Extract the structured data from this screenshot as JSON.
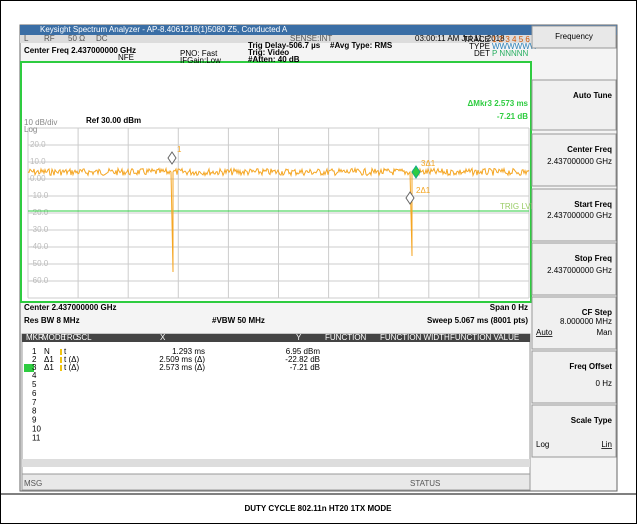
{
  "window_title": "Keysight Spectrum Analyzer - AP-8.4061218(1)5080 Z5, Conducted A",
  "toolbar": [
    "L",
    "RF",
    "50 Ω",
    "DC",
    "SENSE:INT"
  ],
  "datetime": "03:00:11 AM Jul 11, 2018",
  "header": {
    "center_freq": "Center Freq 2.437000000 GHz",
    "nfe": "NFE",
    "pno": "PNO: Fast",
    "ifgain": "IFGain:Low",
    "trig_delay": "Trig Delay-506.7 µs",
    "trig": "Trig: Video",
    "atten": "#Atten: 40 dB",
    "avg": "#Avg Type: RMS",
    "trace_label": "TRACE",
    "trace_value": "1 2 3 4 5 6",
    "type_label": "TYPE",
    "type_value": "WWWWWW",
    "det_label": "DET",
    "det_value": "P NNNNN"
  },
  "readout": {
    "line1": "ΔMkr3 2.573 ms",
    "line2": "-7.21 dB"
  },
  "plot": {
    "scale": "10 dB/div",
    "log": "Log",
    "ref": "Ref 30.00 dBm",
    "y_labels": [
      "20.0",
      "10.0",
      "0.00",
      "-10.0",
      "-20.0",
      "-30.0",
      "-40.0",
      "-50.0",
      "-60.0"
    ],
    "markers": [
      "1",
      "3Δ1",
      "2Δ1"
    ],
    "trig_lvl": "TRIG LVL"
  },
  "footer": {
    "center": "Center 2.437000000 GHz",
    "span": "Span 0 Hz",
    "rbw": "Res BW 8 MHz",
    "vbw": "#VBW 50 MHz",
    "sweep": "Sweep  5.067 ms (8001 pts)"
  },
  "table": {
    "headers": [
      "MKR",
      "MODE",
      "TRC",
      "SCL",
      "X",
      "Y",
      "FUNCTION",
      "FUNCTION WIDTH",
      "FUNCTION VALUE"
    ],
    "rows": [
      [
        "1",
        "N",
        "t",
        "1.293 ms",
        "6.95 dBm"
      ],
      [
        "2",
        "Δ1",
        "t  (Δ)",
        "2.509 ms  (Δ)",
        "-22.82 dB"
      ],
      [
        "3",
        "Δ1",
        "t  (Δ)",
        "2.573 ms  (Δ)",
        "-7.21 dB"
      ]
    ],
    "empty_rows": [
      "4",
      "5",
      "6",
      "7",
      "8",
      "9",
      "10",
      "11"
    ]
  },
  "status": {
    "msg": "MSG",
    "status": "STATUS"
  },
  "softkeys": {
    "menu": "Frequency",
    "auto_tune": "Auto Tune",
    "center_freq": "Center Freq",
    "center_value": "2.437000000 GHz",
    "start_freq": "Start Freq",
    "start_value": "2.437000000 GHz",
    "stop_freq": "Stop Freq",
    "stop_value": "2.437000000 GHz",
    "cf_step": "CF Step",
    "cf_value": "8.000000 MHz",
    "cf_auto": "Auto",
    "cf_man": "Man",
    "freq_offset": "Freq Offset",
    "offset_value": "0 Hz",
    "scale_type": "Scale Type",
    "scale_log": "Log",
    "scale_lin": "Lin"
  },
  "caption": "DUTY CYCLE 802.11n HT20 1TX MODE"
}
